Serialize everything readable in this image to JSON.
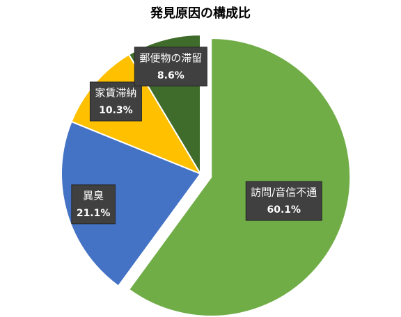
{
  "chart_data": {
    "type": "pie",
    "title": "発見原因の構成比",
    "categories": [
      "訪問/音信不通",
      "異臭",
      "家賃滞納",
      "郵便物の滞留"
    ],
    "values": [
      60.1,
      21.1,
      10.3,
      8.6
    ],
    "value_labels": [
      "60.1%",
      "21.1%",
      "10.3%",
      "8.6%"
    ],
    "colors": [
      "#70ad47",
      "#4472c4",
      "#ffc000",
      "#3f6b2b"
    ]
  }
}
